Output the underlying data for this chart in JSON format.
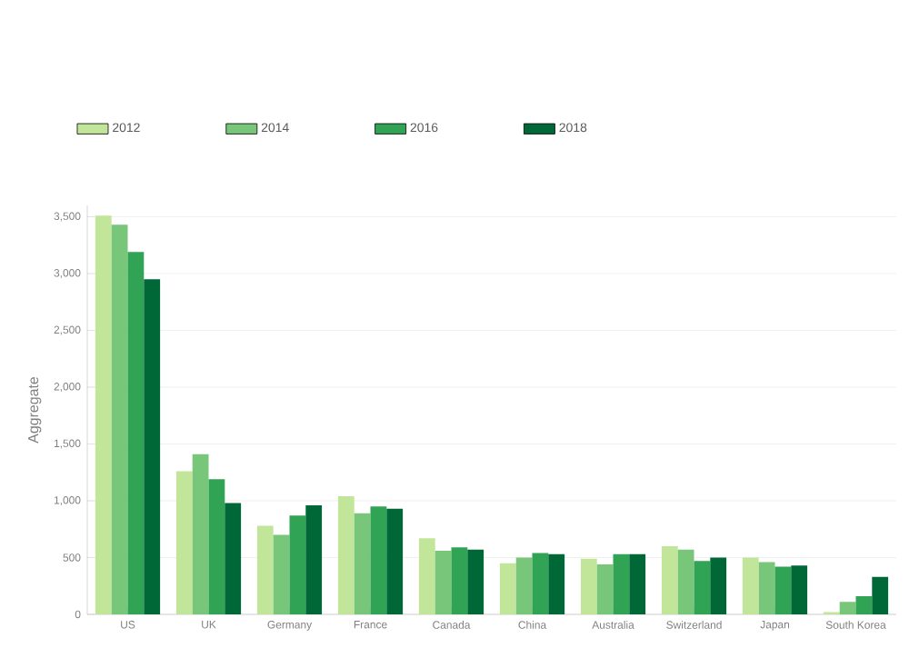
{
  "chart_data": {
    "type": "bar",
    "ylabel": "Aggregate",
    "categories": [
      "US",
      "UK",
      "Germany",
      "France",
      "Canada",
      "China",
      "Australia",
      "Switzerland",
      "Japan",
      "South Korea"
    ],
    "series": [
      {
        "name": "2012",
        "color": "#c2e699",
        "values": [
          3510,
          1260,
          780,
          1040,
          670,
          450,
          490,
          600,
          500,
          20
        ]
      },
      {
        "name": "2014",
        "color": "#78c679",
        "values": [
          3430,
          1410,
          700,
          890,
          560,
          500,
          440,
          570,
          460,
          110
        ]
      },
      {
        "name": "2016",
        "color": "#31a354",
        "values": [
          3190,
          1190,
          870,
          950,
          590,
          540,
          530,
          470,
          420,
          160
        ]
      },
      {
        "name": "2018",
        "color": "#006837",
        "values": [
          2950,
          980,
          960,
          930,
          570,
          530,
          530,
          500,
          430,
          330
        ]
      }
    ],
    "ylim": [
      0,
      3600
    ],
    "yticks": [
      {
        "value": 0,
        "label": "0"
      },
      {
        "value": 500,
        "label": "500"
      },
      {
        "value": 1000,
        "label": "1,000"
      },
      {
        "value": 1500,
        "label": "1,500"
      },
      {
        "value": 2000,
        "label": "2,000"
      },
      {
        "value": 2500,
        "label": "2,500"
      },
      {
        "value": 3000,
        "label": "3,000"
      },
      {
        "value": 3500,
        "label": "3,500"
      }
    ],
    "grid": "y",
    "legend": "top left"
  }
}
